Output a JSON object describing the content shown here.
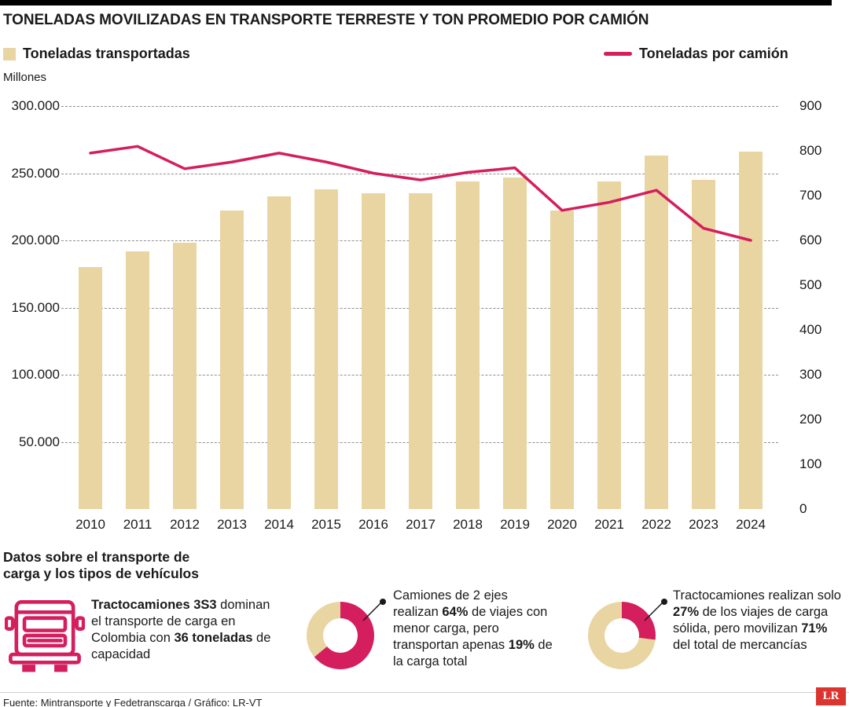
{
  "header": {
    "title": "TONELADAS MOVILIZADAS EN TRANSPORTE TERRESTE Y TON PROMEDIO POR CAMIÓN"
  },
  "legend": {
    "bar_label": "Toneladas transportadas",
    "line_label": "Toneladas por camión"
  },
  "chart_data": {
    "type": "bar+line combo",
    "categories": [
      "2010",
      "2011",
      "2012",
      "2013",
      "2014",
      "2015",
      "2016",
      "2017",
      "2018",
      "2019",
      "2020",
      "2021",
      "2022",
      "2023",
      "2024"
    ],
    "series": [
      {
        "name": "Toneladas transportadas",
        "kind": "bar",
        "axis": "left",
        "color": "#e9d5a2",
        "values": [
          180000,
          192000,
          198000,
          222000,
          233000,
          238000,
          235000,
          235000,
          244000,
          247000,
          222000,
          244000,
          263000,
          245000,
          266000
        ]
      },
      {
        "name": "Toneladas por camión",
        "kind": "line",
        "axis": "right",
        "color": "#d41e5e",
        "values": [
          795,
          810,
          760,
          775,
          795,
          775,
          750,
          735,
          752,
          762,
          667,
          685,
          712,
          627,
          600
        ]
      }
    ],
    "left_axis": {
      "label": "Millones",
      "min": 0,
      "max": 300000,
      "ticks": [
        {
          "label": "300.000",
          "value": 300000
        },
        {
          "label": "250.000",
          "value": 250000
        },
        {
          "label": "200.000",
          "value": 200000
        },
        {
          "label": "150.000",
          "value": 150000
        },
        {
          "label": "100.000",
          "value": 100000
        },
        {
          "label": "50.000",
          "value": 50000
        }
      ]
    },
    "right_axis": {
      "min": 0,
      "max": 900,
      "ticks": [
        {
          "label": "900",
          "value": 900
        },
        {
          "label": "800",
          "value": 800
        },
        {
          "label": "700",
          "value": 700
        },
        {
          "label": "600",
          "value": 600
        },
        {
          "label": "500",
          "value": 500
        },
        {
          "label": "400",
          "value": 400
        },
        {
          "label": "300",
          "value": 300
        },
        {
          "label": "200",
          "value": 200
        },
        {
          "label": "100",
          "value": 100
        },
        {
          "label": "0",
          "value": 0
        }
      ]
    },
    "grid": {
      "horizontal": "dashed",
      "at": "left-axis-ticks"
    },
    "legend_position": "top"
  },
  "facts": {
    "heading": "Datos sobre el transporte de carga y los tipos de vehículos",
    "items": [
      {
        "icon": "truck-icon",
        "segments": [
          {
            "text": "Tractocamiones 3S3",
            "bold": true
          },
          {
            "text": " dominan el transporte de carga en Colombia con ",
            "bold": false
          },
          {
            "text": "36 toneladas",
            "bold": true
          },
          {
            "text": " de capacidad",
            "bold": false
          }
        ]
      },
      {
        "icon": "donut-chart",
        "donut": {
          "highlight_pct": 64,
          "highlight_color": "#d41e5e",
          "base_color": "#e9d5a2"
        },
        "segments": [
          {
            "text": "Camiones de 2 ejes realizan ",
            "bold": false
          },
          {
            "text": "64%",
            "bold": true
          },
          {
            "text": " de viajes con menor carga, pero transportan apenas ",
            "bold": false
          },
          {
            "text": "19%",
            "bold": true
          },
          {
            "text": " de la carga total",
            "bold": false
          }
        ]
      },
      {
        "icon": "donut-chart",
        "donut": {
          "highlight_pct": 27,
          "highlight_color": "#d41e5e",
          "base_color": "#e9d5a2"
        },
        "segments": [
          {
            "text": "Tractocamiones realizan solo ",
            "bold": false
          },
          {
            "text": "27%",
            "bold": true
          },
          {
            "text": " de los viajes de carga sólida, pero movilizan ",
            "bold": false
          },
          {
            "text": "71%",
            "bold": true
          },
          {
            "text": " del total de mercancías",
            "bold": false
          }
        ]
      }
    ]
  },
  "footer": {
    "source": "Fuente: Mintransporte y Fedetranscarga / Gráfico: LR-VT",
    "logo_text": "LR",
    "logo_color": "#dc3530"
  },
  "colors": {
    "bar": "#e9d5a2",
    "line": "#d41e5e",
    "top_bar": "#000000"
  }
}
